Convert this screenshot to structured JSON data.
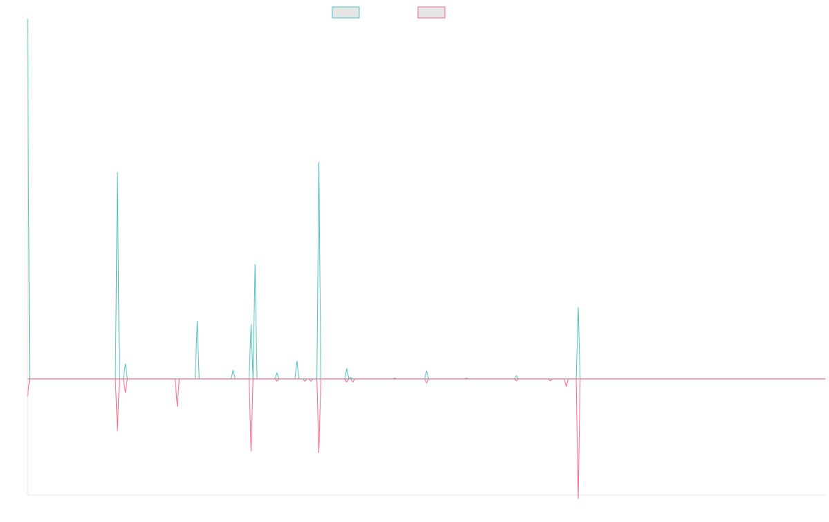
{
  "chart_data": {
    "type": "line",
    "title": "",
    "xlabel": "",
    "ylabel": "",
    "x_count": 401,
    "ylim": [
      -300,
      900
    ],
    "grid": false,
    "legend_placement": "top-center",
    "series": [
      {
        "color": "#4bc0c0",
        "fill": "#e6e6e6",
        "spikes": [
          [
            0,
            905
          ],
          [
            45,
            520
          ],
          [
            49,
            38
          ],
          [
            85,
            145
          ],
          [
            103,
            22
          ],
          [
            112,
            138
          ],
          [
            114,
            288
          ],
          [
            125,
            15
          ],
          [
            135,
            45
          ],
          [
            146,
            545
          ],
          [
            160,
            27
          ],
          [
            162,
            4
          ],
          [
            184,
            2
          ],
          [
            200,
            20
          ],
          [
            220,
            2
          ],
          [
            245,
            8
          ],
          [
            276,
            180
          ]
        ]
      },
      {
        "color": "#ff6384",
        "fill": "#e6e6e6",
        "spikes": [
          [
            0,
            -45
          ],
          [
            45,
            -135
          ],
          [
            49,
            -35
          ],
          [
            75,
            -72
          ],
          [
            112,
            -187
          ],
          [
            125,
            -6
          ],
          [
            139,
            -6
          ],
          [
            142,
            -6
          ],
          [
            146,
            -191
          ],
          [
            160,
            -8
          ],
          [
            163,
            -8
          ],
          [
            200,
            -10
          ],
          [
            245,
            -5
          ],
          [
            262,
            -5
          ],
          [
            270,
            -20
          ],
          [
            276,
            -310
          ]
        ]
      }
    ]
  }
}
